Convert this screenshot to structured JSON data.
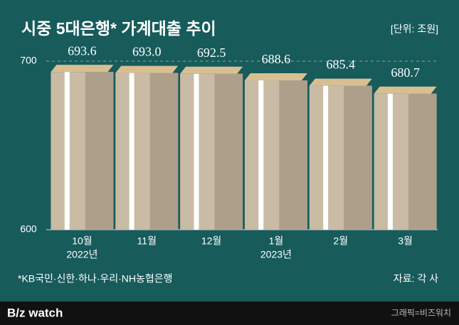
{
  "chart_data": {
    "type": "bar",
    "title": "시중 5대은행* 가계대출 추이",
    "unit": "[단위: 조원]",
    "categories": [
      "10월",
      "11월",
      "12월",
      "1월",
      "2월",
      "3월"
    ],
    "sublabels": [
      "2022년",
      null,
      null,
      "2023년",
      null,
      null
    ],
    "values": [
      693.6,
      693.0,
      692.5,
      688.6,
      685.4,
      680.7
    ],
    "value_labels": [
      "693.6",
      "693.0",
      "692.5",
      "688.6",
      "685.4",
      "680.7"
    ],
    "color": "#c9bba4",
    "ylim": [
      600,
      700
    ],
    "yticks": [
      600,
      700
    ],
    "grid": true,
    "footnote": "*KB국민·신한·하나·우리·NH농협은행",
    "source": "자료: 각 사",
    "brand": "B/z watch",
    "credit": "그래픽=비즈워치"
  }
}
